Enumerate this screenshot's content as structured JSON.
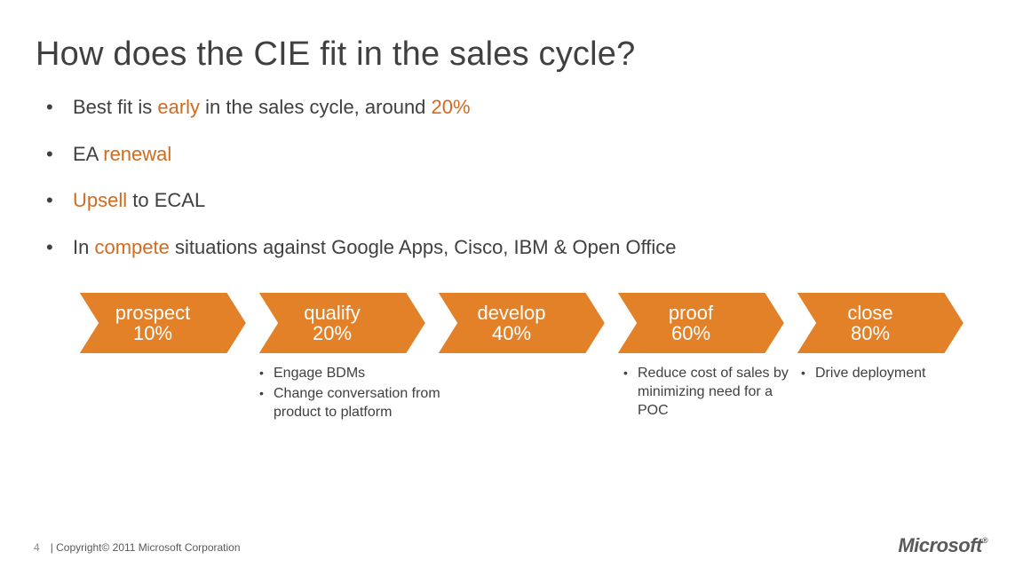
{
  "title": "How does the CIE fit in the sales cycle?",
  "bullets": [
    {
      "pre": "Best fit is ",
      "hl1": "early",
      "mid": " in the sales cycle, around ",
      "hl2": "20%",
      "post": ""
    },
    {
      "pre": "EA ",
      "hl1": "renewal",
      "mid": "",
      "hl2": "",
      "post": ""
    },
    {
      "pre": "",
      "hl1": "Upsell",
      "mid": " to ECAL",
      "hl2": "",
      "post": ""
    },
    {
      "pre": "In ",
      "hl1": "compete",
      "mid": " situations against Google Apps, Cisco, IBM & Open Office",
      "hl2": "",
      "post": ""
    }
  ],
  "chevrons": {
    "fill": "#e38128",
    "stroke": "#ffffff",
    "width": 190,
    "height": 70,
    "items": [
      {
        "line1": "prospect",
        "line2": "10%"
      },
      {
        "line1": "qualify",
        "line2": "20%"
      },
      {
        "line1": "develop",
        "line2": "40%"
      },
      {
        "line1": "proof",
        "line2": "60%"
      },
      {
        "line1": "close",
        "line2": "80%"
      }
    ]
  },
  "notes": {
    "col1_spacer_width": 200,
    "col2_width": 260,
    "col2_items": [
      "Engage BDMs",
      "Change conversation from product to platform"
    ],
    "col3_spacer_width": 150,
    "col4_width": 200,
    "col4_items": [
      "Reduce cost of sales by minimizing need for  a POC"
    ],
    "col5_width": 200,
    "col5_items": [
      "Drive deployment"
    ]
  },
  "footer": {
    "page": "4",
    "copyright": "| Copyright© 2011 Microsoft Corporation"
  },
  "logo": {
    "text": "Microsoft",
    "reg": "®"
  }
}
